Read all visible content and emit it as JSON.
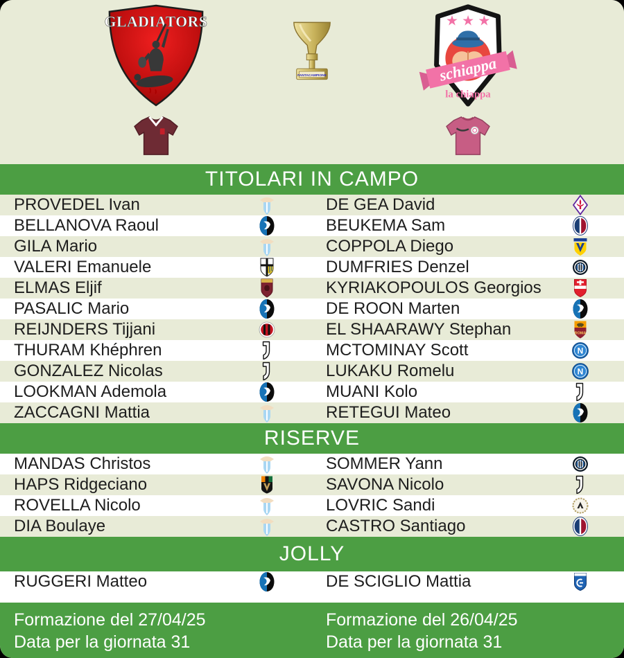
{
  "theme": {
    "green": "#4c9e43",
    "bg_light": "#e8ebd7",
    "row_white": "#ffffff",
    "text_dark": "#1d1d1d",
    "home_jersey": "#6e2b34",
    "away_jersey": "#c75d84",
    "pink": "#f272a7",
    "crest_red": "#c00f0f"
  },
  "header": {
    "home_team": "GLADIATORS",
    "away_team": "schiappa",
    "away_subtitle": "la chiappa",
    "away_stars": "★ ★ ★",
    "trophy_label": "FANTACAMPIONE"
  },
  "sections": [
    {
      "title": "TITOLARI IN CAMPO",
      "rows": [
        {
          "left": {
            "name": "PROVEDEL Ivan",
            "club": "lazio"
          },
          "right": {
            "name": "DE GEA David",
            "club": "fiorentina"
          }
        },
        {
          "left": {
            "name": "BELLANOVA Raoul",
            "club": "atalanta"
          },
          "right": {
            "name": "BEUKEMA Sam",
            "club": "bologna"
          }
        },
        {
          "left": {
            "name": "GILA Mario",
            "club": "lazio"
          },
          "right": {
            "name": "COPPOLA Diego",
            "club": "verona"
          }
        },
        {
          "left": {
            "name": "VALERI Emanuele",
            "club": "parma"
          },
          "right": {
            "name": "DUMFRIES Denzel",
            "club": "inter"
          }
        },
        {
          "left": {
            "name": "ELMAS Eljif",
            "club": "torino"
          },
          "right": {
            "name": "KYRIAKOPOULOS Georgios",
            "club": "monza"
          }
        },
        {
          "left": {
            "name": "PASALIC Mario",
            "club": "atalanta"
          },
          "right": {
            "name": "DE ROON Marten",
            "club": "atalanta"
          }
        },
        {
          "left": {
            "name": "REIJNDERS Tijjani",
            "club": "milan"
          },
          "right": {
            "name": "EL SHAARAWY Stephan",
            "club": "roma"
          }
        },
        {
          "left": {
            "name": "THURAM Khéphren",
            "club": "juventus"
          },
          "right": {
            "name": "MCTOMINAY Scott",
            "club": "napoli"
          }
        },
        {
          "left": {
            "name": "GONZALEZ Nicolas",
            "club": "juventus"
          },
          "right": {
            "name": "LUKAKU Romelu",
            "club": "napoli"
          }
        },
        {
          "left": {
            "name": "LOOKMAN Ademola",
            "club": "atalanta"
          },
          "right": {
            "name": "MUANI Kolo",
            "club": "juventus"
          }
        },
        {
          "left": {
            "name": "ZACCAGNI Mattia",
            "club": "lazio"
          },
          "right": {
            "name": "RETEGUI Mateo",
            "club": "atalanta"
          }
        }
      ]
    },
    {
      "title": "RISERVE",
      "rows": [
        {
          "left": {
            "name": "MANDAS Christos",
            "club": "lazio"
          },
          "right": {
            "name": "SOMMER Yann",
            "club": "inter"
          }
        },
        {
          "left": {
            "name": "HAPS Ridgeciano",
            "club": "venezia"
          },
          "right": {
            "name": "SAVONA Nicolo",
            "club": "juventus"
          }
        },
        {
          "left": {
            "name": "ROVELLA Nicolo",
            "club": "lazio"
          },
          "right": {
            "name": "LOVRIC Sandi",
            "club": "udinese"
          }
        },
        {
          "left": {
            "name": "DIA Boulaye",
            "club": "lazio"
          },
          "right": {
            "name": "CASTRO Santiago",
            "club": "bologna"
          }
        }
      ]
    },
    {
      "title": "JOLLY",
      "rows": [
        {
          "left": {
            "name": "RUGGERI Matteo",
            "club": "atalanta"
          },
          "right": {
            "name": "DE SCIGLIO Mattia",
            "club": "empoli"
          }
        }
      ]
    }
  ],
  "footer": {
    "home": {
      "line1": "Formazione del 27/04/25",
      "line2": "Data per la giornata 31"
    },
    "away": {
      "line1": "Formazione del 26/04/25",
      "line2": "Data per la giornata 31"
    }
  },
  "clubs": {
    "lazio": {
      "name": "Lazio",
      "colors": {
        "shield": "#a9d7f3",
        "eagle": "#f2ddc0"
      }
    },
    "atalanta": {
      "name": "Atalanta",
      "colors": {
        "blue": "#1773b6",
        "black": "#0c0c0c"
      }
    },
    "parma": {
      "name": "Parma",
      "colors": {
        "cross": "#111111",
        "gold": "#f2cf1d",
        "blue": "#1a4b9b"
      }
    },
    "torino": {
      "name": "Torino",
      "colors": {
        "maroon": "#7d2230",
        "gold": "#d9b24a",
        "dark": "#4a1218"
      }
    },
    "milan": {
      "name": "Milan",
      "colors": {
        "red": "#c3121f",
        "black": "#111111"
      }
    },
    "juventus": {
      "name": "Juventus",
      "colors": {
        "black": "#111111"
      }
    },
    "fiorentina": {
      "name": "Fiorentina",
      "colors": {
        "purple": "#5f259f",
        "red": "#d0103a"
      }
    },
    "bologna": {
      "name": "Bologna",
      "colors": {
        "blue": "#1b3e75",
        "red": "#9f1430"
      }
    },
    "verona": {
      "name": "Hellas Verona",
      "colors": {
        "yellow": "#ffd100",
        "blue": "#1b3f94"
      }
    },
    "inter": {
      "name": "Inter",
      "colors": {
        "dark": "#0e1a26",
        "blue": "#2a6fbd"
      }
    },
    "monza": {
      "name": "Monza",
      "colors": {
        "red": "#e2202e"
      }
    },
    "roma": {
      "name": "Roma",
      "colors": {
        "orange": "#f59e00",
        "crimson": "#8e1f2f",
        "wolf": "#5a4a1c",
        "gold": "#f7c65c"
      }
    },
    "napoli": {
      "name": "Napoli",
      "colors": {
        "blue": "#2f86d2",
        "dark": "#15508f"
      }
    },
    "venezia": {
      "name": "Venezia",
      "colors": {
        "orange": "#f08300",
        "green": "#156f3c",
        "gold": "#c3a15c",
        "black": "#141414"
      }
    },
    "udinese": {
      "name": "Udinese",
      "colors": {
        "gold": "#b5a268",
        "dark": "#222222"
      }
    },
    "empoli": {
      "name": "Empoli",
      "colors": {
        "blue": "#1f63b4",
        "dark": "#123c74"
      }
    }
  }
}
